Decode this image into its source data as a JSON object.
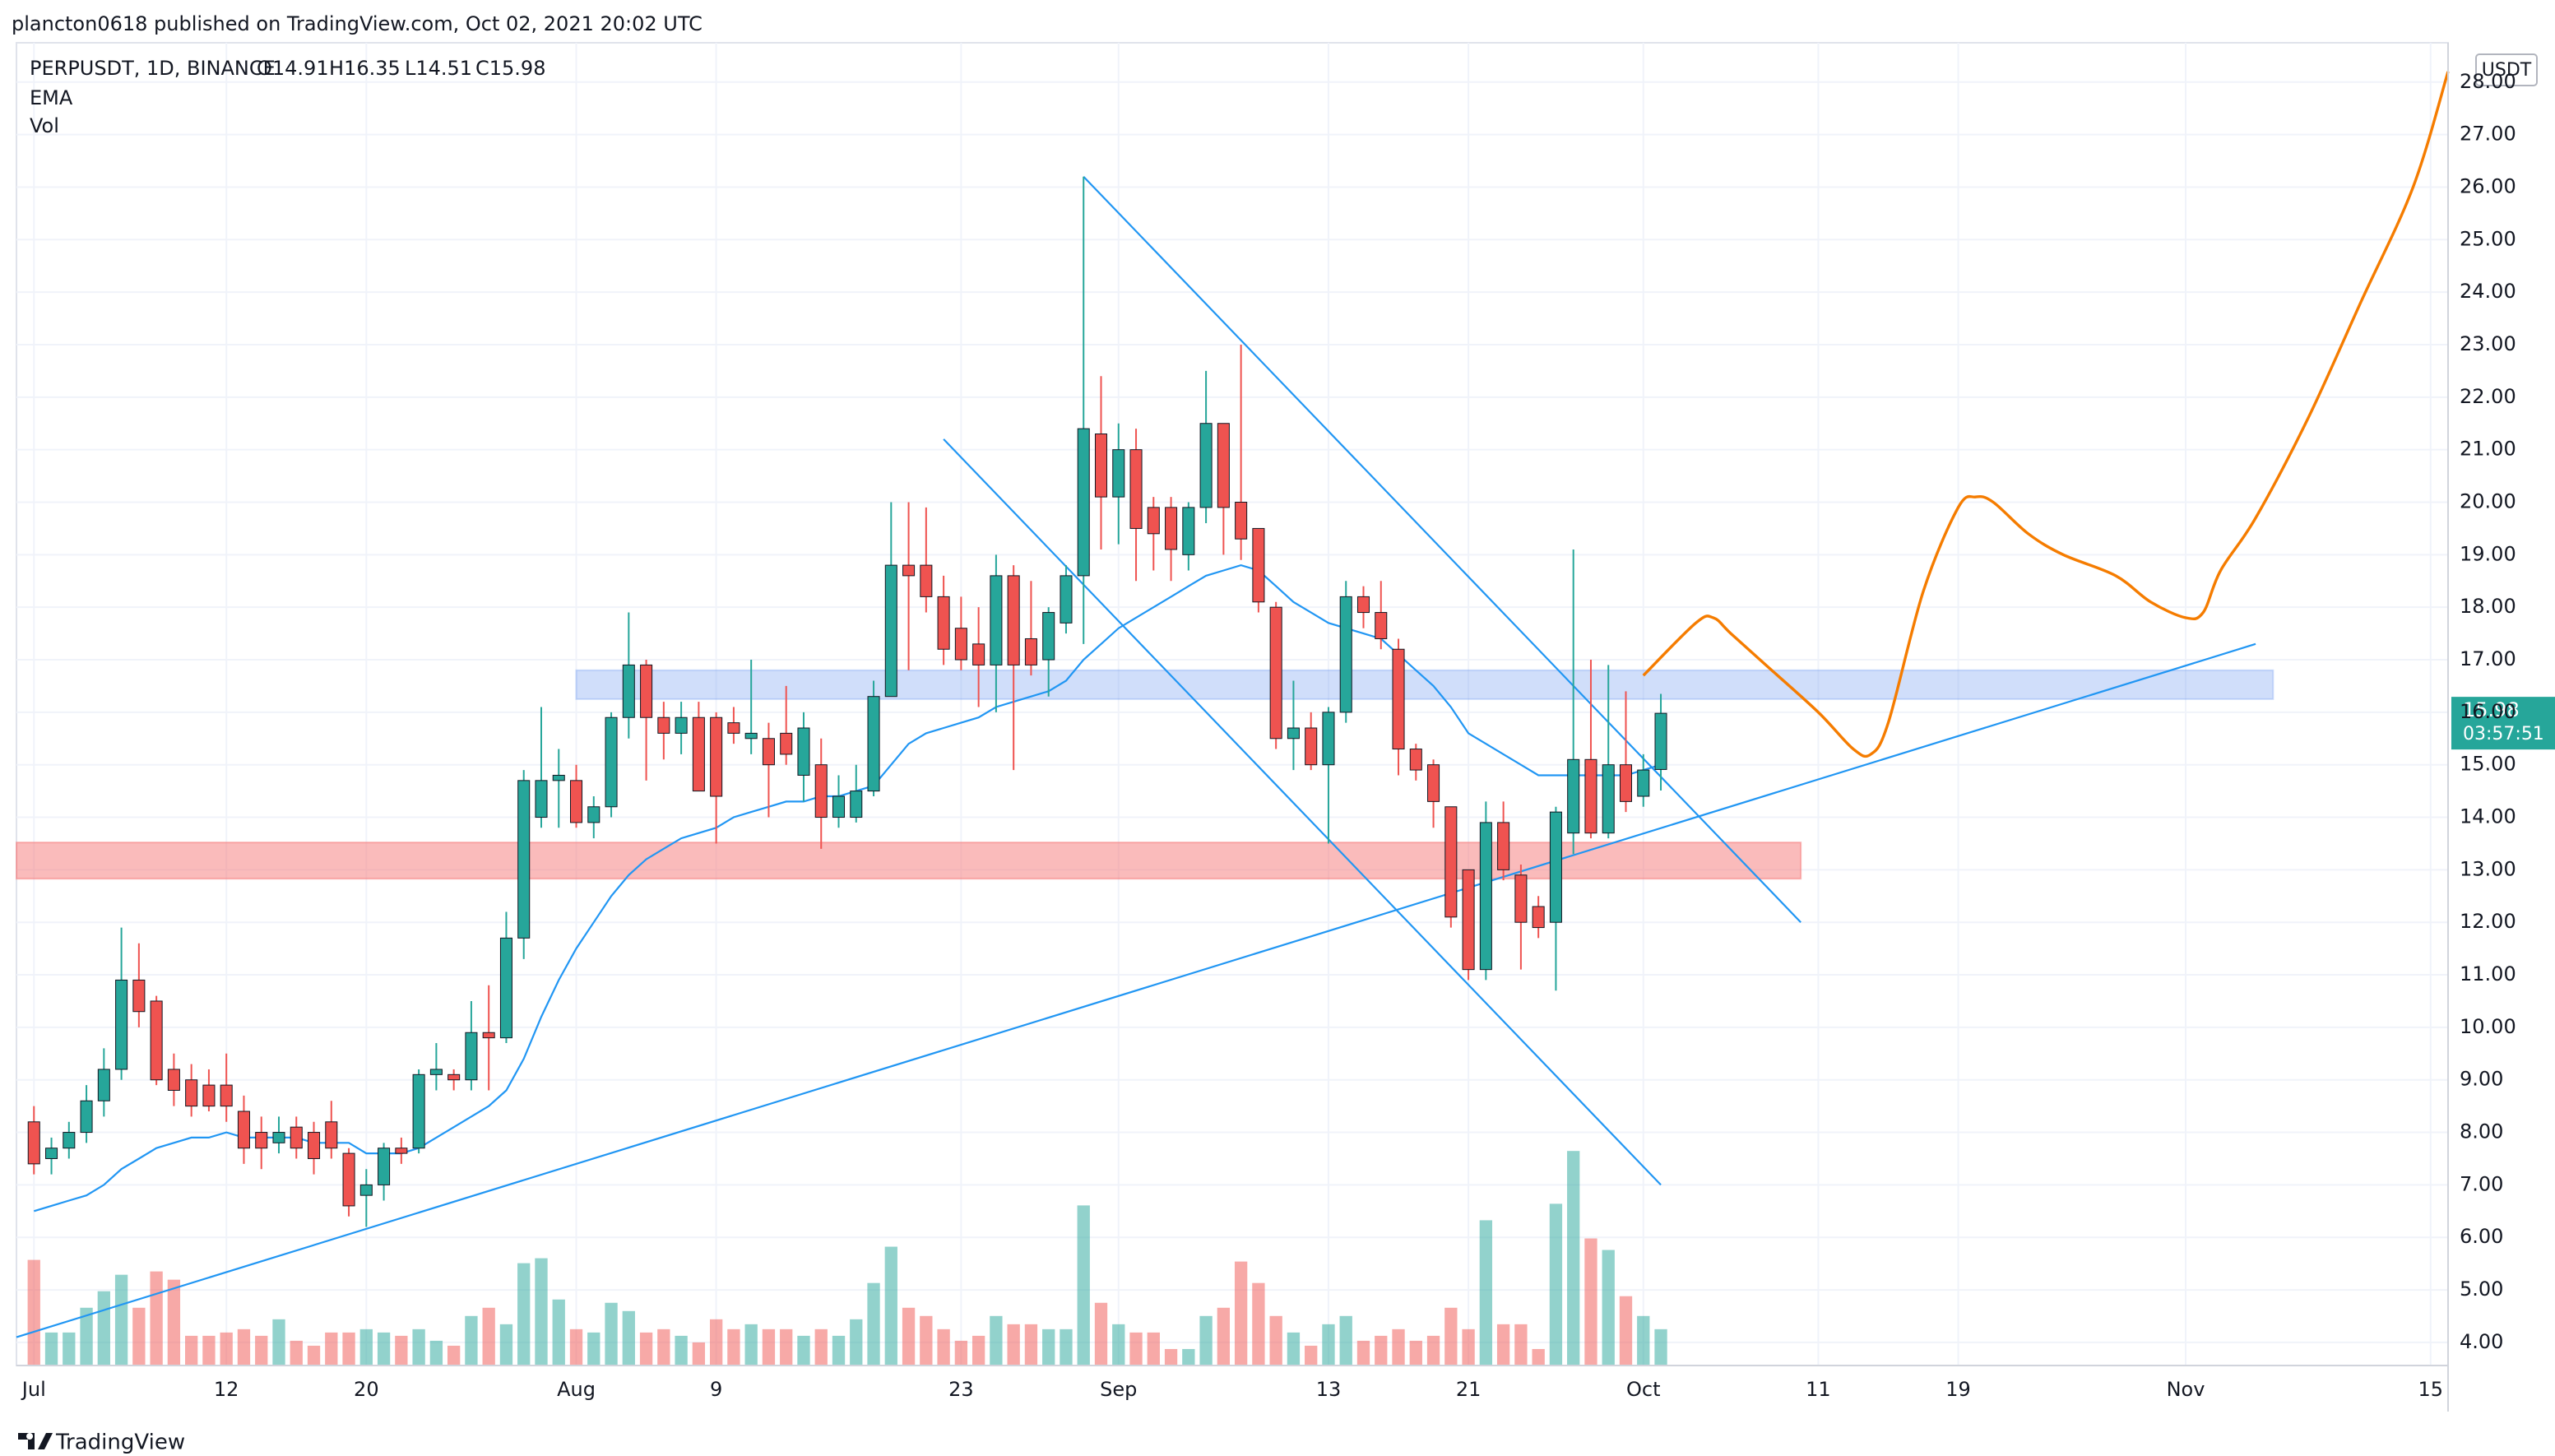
{
  "header": {
    "published": "plancton0618 published on TradingView.com, Oct 02, 2021 20:02 UTC"
  },
  "legend": {
    "symbol": "PERPUSDT, 1D, BINANCE",
    "open": "O14.91",
    "high": "H16.35",
    "low": "L14.51",
    "close": "C15.98",
    "ema": "EMA",
    "vol": "Vol"
  },
  "currency": "USDT",
  "price_label": {
    "value": "15.98",
    "countdown": "03:57:51",
    "color": "#26a69a"
  },
  "brand": "TradingView",
  "chart_data": {
    "type": "candlestick",
    "up_color": "#26a69a",
    "down_color": "#ef5350",
    "x": [
      "2021-07-01",
      "2021-07-02",
      "2021-07-03",
      "2021-07-04",
      "2021-07-05",
      "2021-07-06",
      "2021-07-07",
      "2021-07-08",
      "2021-07-09",
      "2021-07-10",
      "2021-07-11",
      "2021-07-12",
      "2021-07-13",
      "2021-07-14",
      "2021-07-15",
      "2021-07-16",
      "2021-07-17",
      "2021-07-18",
      "2021-07-19",
      "2021-07-20",
      "2021-07-21",
      "2021-07-22",
      "2021-07-23",
      "2021-07-24",
      "2021-07-25",
      "2021-07-26",
      "2021-07-27",
      "2021-07-28",
      "2021-07-29",
      "2021-07-30",
      "2021-07-31",
      "2021-08-01",
      "2021-08-02",
      "2021-08-03",
      "2021-08-04",
      "2021-08-05",
      "2021-08-06",
      "2021-08-07",
      "2021-08-08",
      "2021-08-09",
      "2021-08-10",
      "2021-08-11",
      "2021-08-12",
      "2021-08-13",
      "2021-08-14",
      "2021-08-15",
      "2021-08-16",
      "2021-08-17",
      "2021-08-18",
      "2021-08-19",
      "2021-08-20",
      "2021-08-21",
      "2021-08-22",
      "2021-08-23",
      "2021-08-24",
      "2021-08-25",
      "2021-08-26",
      "2021-08-27",
      "2021-08-28",
      "2021-08-29",
      "2021-08-30",
      "2021-08-31",
      "2021-09-01",
      "2021-09-02",
      "2021-09-03",
      "2021-09-04",
      "2021-09-05",
      "2021-09-06",
      "2021-09-07",
      "2021-09-08",
      "2021-09-09",
      "2021-09-10",
      "2021-09-11",
      "2021-09-12",
      "2021-09-13",
      "2021-09-14",
      "2021-09-15",
      "2021-09-16",
      "2021-09-17",
      "2021-09-18",
      "2021-09-19",
      "2021-09-20",
      "2021-09-21",
      "2021-09-22",
      "2021-09-23",
      "2021-09-24",
      "2021-09-25",
      "2021-09-26",
      "2021-09-27",
      "2021-09-28",
      "2021-09-29",
      "2021-09-30",
      "2021-10-01",
      "2021-10-02"
    ],
    "open": [
      8.2,
      7.5,
      7.7,
      8.0,
      8.6,
      9.2,
      10.9,
      10.5,
      9.2,
      9.0,
      8.9,
      8.9,
      8.4,
      8.0,
      7.8,
      8.1,
      8.0,
      8.2,
      7.6,
      6.8,
      7.0,
      7.7,
      7.7,
      9.1,
      9.1,
      9.0,
      9.9,
      9.8,
      11.7,
      14.0,
      14.7,
      14.7,
      13.9,
      14.2,
      15.9,
      16.9,
      15.9,
      15.6,
      15.9,
      15.9,
      15.8,
      15.5,
      15.5,
      15.6,
      14.8,
      15.0,
      14.0,
      14.0,
      14.5,
      16.3,
      18.8,
      18.8,
      18.2,
      17.6,
      17.3,
      16.9,
      18.6,
      17.4,
      17.0,
      17.7,
      18.6,
      21.3,
      20.1,
      21.0,
      19.9,
      19.9,
      19.0,
      19.9,
      21.5,
      20.0,
      19.5,
      18.0,
      15.5,
      15.7,
      15.0,
      16.0,
      18.2,
      17.9,
      17.2,
      15.3,
      15.0,
      14.2,
      13.0,
      11.1,
      13.9,
      12.9,
      12.3,
      12.0,
      13.7,
      15.1,
      13.7,
      15.0,
      14.4,
      14.91
    ],
    "high": [
      8.5,
      7.9,
      8.2,
      8.9,
      9.6,
      11.9,
      11.6,
      10.6,
      9.5,
      9.3,
      9.2,
      9.5,
      8.7,
      8.3,
      8.3,
      8.3,
      8.2,
      8.6,
      7.7,
      7.3,
      7.8,
      7.9,
      9.2,
      9.7,
      9.2,
      10.5,
      10.8,
      12.2,
      14.9,
      16.1,
      15.3,
      15.0,
      14.4,
      16.0,
      17.9,
      17.0,
      16.2,
      16.2,
      16.2,
      16.0,
      16.1,
      17.0,
      15.8,
      16.5,
      16.0,
      15.5,
      14.8,
      15.0,
      16.6,
      20.0,
      20.0,
      19.9,
      18.6,
      18.2,
      18.0,
      19.0,
      18.8,
      18.5,
      18.0,
      18.8,
      26.2,
      22.4,
      21.5,
      21.4,
      20.1,
      20.1,
      20.0,
      22.5,
      21.5,
      23.0,
      19.5,
      18.1,
      16.6,
      16.0,
      16.1,
      18.5,
      18.4,
      18.5,
      17.4,
      15.4,
      15.1,
      14.2,
      13.0,
      14.3,
      14.3,
      13.1,
      12.5,
      14.2,
      19.1,
      17.0,
      16.9,
      16.4,
      15.2,
      16.35
    ],
    "low": [
      7.2,
      7.2,
      7.5,
      7.8,
      8.3,
      9.0,
      10.0,
      8.9,
      8.5,
      8.3,
      8.4,
      8.2,
      7.4,
      7.3,
      7.6,
      7.5,
      7.2,
      7.5,
      6.4,
      6.2,
      6.7,
      7.4,
      7.6,
      8.8,
      8.8,
      8.8,
      8.8,
      9.7,
      11.3,
      13.8,
      13.8,
      13.8,
      13.6,
      14.0,
      15.5,
      14.7,
      15.1,
      15.2,
      14.5,
      13.5,
      15.4,
      15.2,
      14.0,
      15.0,
      14.3,
      13.4,
      13.8,
      13.9,
      14.4,
      16.3,
      16.8,
      17.9,
      16.9,
      16.8,
      16.1,
      16.0,
      14.9,
      16.7,
      16.3,
      17.5,
      17.3,
      19.1,
      19.2,
      18.5,
      18.7,
      18.5,
      18.7,
      19.6,
      19.0,
      18.9,
      17.9,
      15.3,
      14.9,
      14.9,
      13.5,
      15.8,
      17.6,
      17.2,
      14.8,
      14.7,
      13.8,
      11.9,
      10.9,
      10.9,
      12.8,
      11.1,
      11.7,
      10.7,
      13.3,
      13.6,
      13.6,
      14.1,
      14.2,
      14.51
    ],
    "close": [
      7.4,
      7.7,
      8.0,
      8.6,
      9.2,
      10.9,
      10.3,
      9.0,
      8.8,
      8.5,
      8.5,
      8.5,
      7.7,
      7.7,
      8.0,
      7.7,
      7.5,
      7.7,
      6.6,
      7.0,
      7.7,
      7.6,
      9.1,
      9.2,
      9.0,
      9.9,
      9.8,
      11.7,
      14.7,
      14.7,
      14.8,
      13.9,
      14.2,
      15.9,
      16.9,
      15.9,
      15.6,
      15.9,
      14.5,
      14.4,
      15.6,
      15.6,
      15.0,
      15.2,
      15.7,
      14.0,
      14.4,
      14.5,
      16.3,
      18.8,
      18.6,
      18.2,
      17.2,
      17.0,
      16.9,
      18.6,
      16.9,
      16.9,
      17.9,
      18.6,
      21.4,
      20.1,
      21.0,
      19.5,
      19.4,
      19.1,
      19.9,
      21.5,
      19.9,
      19.3,
      18.1,
      15.5,
      15.7,
      15.0,
      16.0,
      18.2,
      17.9,
      17.4,
      15.3,
      14.9,
      14.3,
      12.1,
      11.1,
      13.9,
      13.0,
      12.0,
      11.9,
      14.1,
      15.1,
      13.7,
      15.0,
      14.3,
      14.9,
      15.98
    ],
    "ema": {
      "name": "EMA",
      "color": "#2196f3",
      "values": [
        6.5,
        6.6,
        6.7,
        6.8,
        7.0,
        7.3,
        7.5,
        7.7,
        7.8,
        7.9,
        7.9,
        8.0,
        7.9,
        7.9,
        7.9,
        7.9,
        7.8,
        7.8,
        7.8,
        7.6,
        7.6,
        7.6,
        7.7,
        7.9,
        8.1,
        8.3,
        8.5,
        8.8,
        9.4,
        10.2,
        10.9,
        11.5,
        12.0,
        12.5,
        12.9,
        13.2,
        13.4,
        13.6,
        13.7,
        13.8,
        14.0,
        14.1,
        14.2,
        14.3,
        14.3,
        14.4,
        14.4,
        14.5,
        14.6,
        15.0,
        15.4,
        15.6,
        15.7,
        15.8,
        15.9,
        16.1,
        16.2,
        16.3,
        16.4,
        16.6,
        17.0,
        17.3,
        17.6,
        17.8,
        18.0,
        18.2,
        18.4,
        18.6,
        18.7,
        18.8,
        18.7,
        18.4,
        18.1,
        17.9,
        17.7,
        17.6,
        17.5,
        17.4,
        17.1,
        16.8,
        16.5,
        16.1,
        15.6,
        15.4,
        15.2,
        15.0,
        14.8,
        14.8,
        14.8,
        14.8,
        14.8,
        14.8,
        14.9,
        15.0
      ]
    },
    "volume": {
      "name": "Vol",
      "up_color": "rgba(38,166,154,0.5)",
      "down_color": "rgba(239,83,80,0.5)",
      "values": [
        64,
        20,
        20,
        35,
        45,
        55,
        35,
        57,
        52,
        18,
        18,
        20,
        22,
        18,
        28,
        15,
        12,
        20,
        20,
        22,
        20,
        18,
        22,
        15,
        12,
        30,
        35,
        25,
        62,
        65,
        40,
        22,
        20,
        38,
        33,
        20,
        22,
        18,
        14,
        28,
        22,
        25,
        22,
        22,
        18,
        22,
        18,
        28,
        50,
        72,
        35,
        30,
        22,
        15,
        18,
        30,
        25,
        25,
        22,
        22,
        97,
        38,
        25,
        20,
        20,
        10,
        10,
        30,
        35,
        63,
        50,
        30,
        20,
        12,
        25,
        30,
        15,
        18,
        22,
        15,
        18,
        35,
        22,
        88,
        25,
        25,
        10,
        98,
        130,
        77,
        70,
        42,
        30,
        22
      ]
    },
    "xlim": [
      "2021-06-30",
      "2021-11-16"
    ],
    "xticks": [
      {
        "value": "2021-07-01",
        "label": "Jul"
      },
      {
        "value": "2021-07-12",
        "label": "12"
      },
      {
        "value": "2021-07-20",
        "label": "20"
      },
      {
        "value": "2021-08-01",
        "label": "Aug"
      },
      {
        "value": "2021-08-09",
        "label": "9"
      },
      {
        "value": "2021-08-23",
        "label": "23"
      },
      {
        "value": "2021-09-01",
        "label": "Sep"
      },
      {
        "value": "2021-09-13",
        "label": "13"
      },
      {
        "value": "2021-09-21",
        "label": "21"
      },
      {
        "value": "2021-10-01",
        "label": "Oct"
      },
      {
        "value": "2021-10-11",
        "label": "11"
      },
      {
        "value": "2021-10-19",
        "label": "19"
      },
      {
        "value": "2021-11-01",
        "label": "Nov"
      },
      {
        "value": "2021-11-15",
        "label": "15"
      }
    ],
    "ylim": [
      3.56,
      28.78
    ],
    "yticks": [
      {
        "value": 4,
        "label": "4.00"
      },
      {
        "value": 5,
        "label": "5.00"
      },
      {
        "value": 6,
        "label": "6.00"
      },
      {
        "value": 7,
        "label": "7.00"
      },
      {
        "value": 8,
        "label": "8.00"
      },
      {
        "value": 9,
        "label": "9.00"
      },
      {
        "value": 10,
        "label": "10.00"
      },
      {
        "value": 11,
        "label": "11.00"
      },
      {
        "value": 12,
        "label": "12.00"
      },
      {
        "value": 13,
        "label": "13.00"
      },
      {
        "value": 14,
        "label": "14.00"
      },
      {
        "value": 15,
        "label": "15.00"
      },
      {
        "value": 16,
        "label": "16.00"
      },
      {
        "value": 17,
        "label": "17.00"
      },
      {
        "value": 18,
        "label": "18.00"
      },
      {
        "value": 19,
        "label": "19.00"
      },
      {
        "value": 20,
        "label": "20.00"
      },
      {
        "value": 21,
        "label": "21.00"
      },
      {
        "value": 22,
        "label": "22.00"
      },
      {
        "value": 23,
        "label": "23.00"
      },
      {
        "value": 24,
        "label": "24.00"
      },
      {
        "value": 25,
        "label": "25.00"
      },
      {
        "value": 26,
        "label": "26.00"
      },
      {
        "value": 27,
        "label": "27.00"
      },
      {
        "value": 28,
        "label": "28.00"
      }
    ],
    "zones": [
      {
        "start": "2021-08-01",
        "end": "2021-11-06",
        "low": 16.25,
        "high": 16.8,
        "color": "rgba(120,160,240,0.35)"
      },
      {
        "start": "2021-06-30",
        "end": "2021-10-10",
        "low": 12.83,
        "high": 13.52,
        "color": "rgba(246,120,120,0.5)"
      }
    ],
    "lines": [
      {
        "color": "#2196f3",
        "points": [
          [
            "2021-06-30",
            4.1
          ],
          [
            "2021-11-05",
            17.3
          ]
        ]
      },
      {
        "color": "#2196f3",
        "points": [
          [
            "2021-08-30",
            26.2
          ],
          [
            "2021-10-10",
            12.0
          ]
        ]
      },
      {
        "color": "#2196f3",
        "points": [
          [
            "2021-08-22",
            21.2
          ],
          [
            "2021-10-02",
            7.0
          ]
        ]
      }
    ],
    "projection": {
      "color": "#f57c00",
      "points": [
        [
          "2021-10-01",
          16.7
        ],
        [
          "2021-10-04",
          17.7
        ],
        [
          "2021-10-05",
          17.8
        ],
        [
          "2021-10-06",
          17.5
        ],
        [
          "2021-10-08",
          16.9
        ],
        [
          "2021-10-11",
          16.0
        ],
        [
          "2021-10-13",
          15.3
        ],
        [
          "2021-10-14",
          15.2
        ],
        [
          "2021-10-15",
          15.8
        ],
        [
          "2021-10-17",
          18.3
        ],
        [
          "2021-10-19",
          19.9
        ],
        [
          "2021-10-20",
          20.1
        ],
        [
          "2021-10-21",
          20.0
        ],
        [
          "2021-10-23",
          19.4
        ],
        [
          "2021-10-25",
          19.0
        ],
        [
          "2021-10-28",
          18.6
        ],
        [
          "2021-10-30",
          18.1
        ],
        [
          "2021-11-01",
          17.8
        ],
        [
          "2021-11-02",
          17.9
        ],
        [
          "2021-11-03",
          18.7
        ],
        [
          "2021-11-05",
          19.7
        ],
        [
          "2021-11-08",
          21.6
        ],
        [
          "2021-11-11",
          23.8
        ],
        [
          "2021-11-14",
          26.0
        ],
        [
          "2021-11-16",
          28.2
        ]
      ]
    }
  }
}
